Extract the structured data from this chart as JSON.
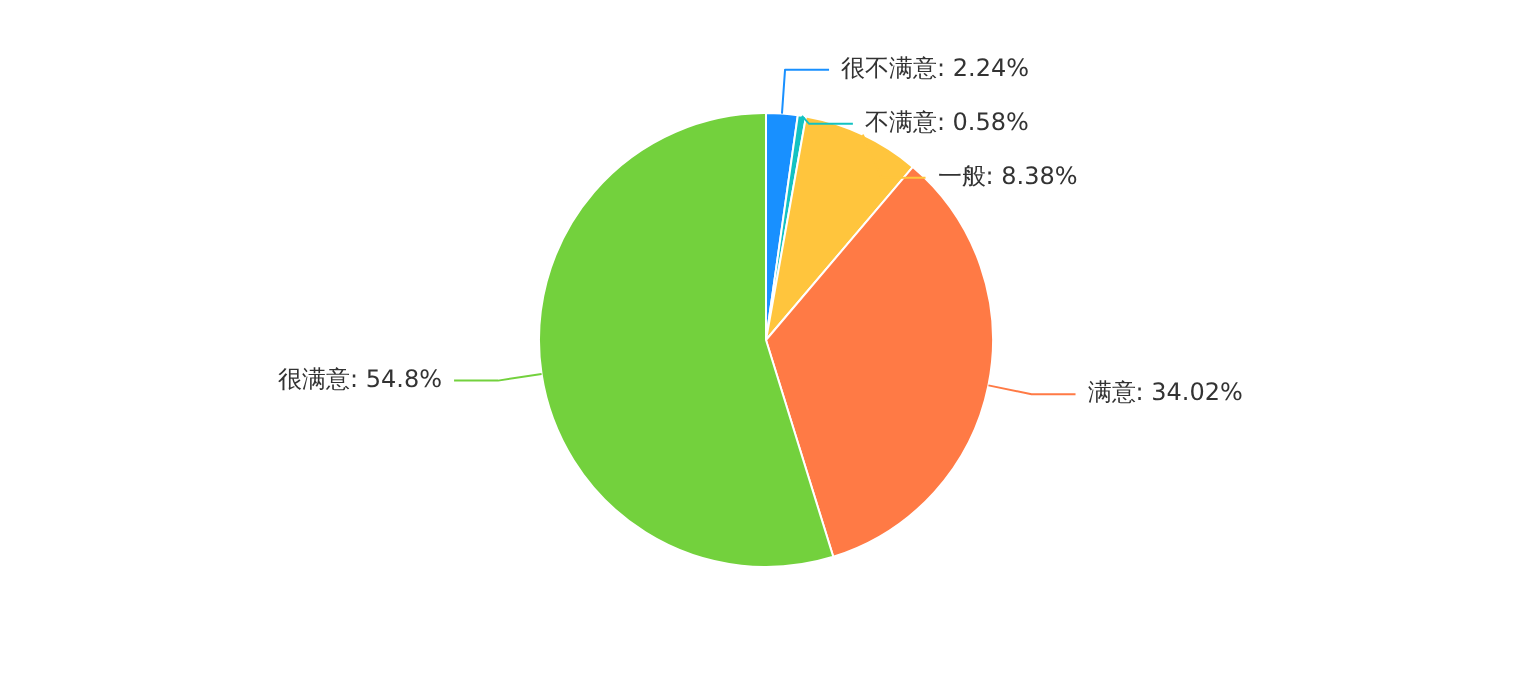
{
  "chart_data": {
    "type": "pie",
    "categories": [
      "很不满意",
      "不满意",
      "一般",
      "满意",
      "很满意"
    ],
    "values": [
      2.24,
      0.58,
      8.38,
      34.02,
      54.8
    ],
    "value_labels": [
      "2.24%",
      "0.58%",
      "8.38%",
      "34.02%",
      "54.8%"
    ],
    "colors": [
      "#1890ff",
      "#13c2c2",
      "#ffc53d",
      "#ff7a45",
      "#73d13d"
    ],
    "legend": false
  }
}
